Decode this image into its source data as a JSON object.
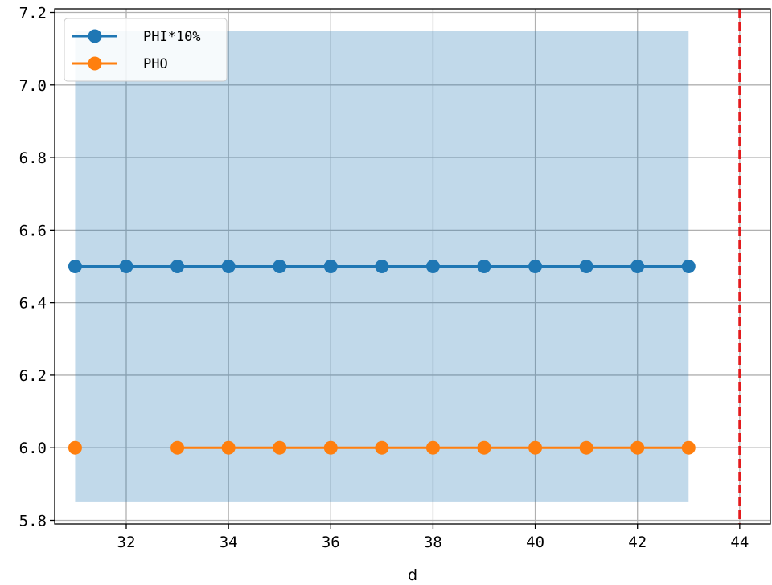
{
  "chart_data": {
    "type": "line",
    "title": "",
    "xlabel": "d",
    "ylabel": "",
    "xlim": [
      30.6,
      44.6
    ],
    "ylim": [
      5.79,
      7.21
    ],
    "xticks": [
      32,
      34,
      36,
      38,
      40,
      42,
      44
    ],
    "xtick_labels": [
      "32",
      "34",
      "36",
      "38",
      "40",
      "42",
      "44"
    ],
    "yticks": [
      5.8,
      6.0,
      6.2,
      6.4,
      6.6,
      6.8,
      7.0,
      7.2
    ],
    "ytick_labels": [
      "5.8",
      "6.0",
      "6.2",
      "6.4",
      "6.6",
      "6.8",
      "7.0",
      "7.2"
    ],
    "grid": true,
    "legend_position": "top-left",
    "series": [
      {
        "name": "PHI*10%",
        "color": "#1f77b4",
        "x": [
          31,
          32,
          33,
          34,
          35,
          36,
          37,
          38,
          39,
          40,
          41,
          42,
          43
        ],
        "values": [
          6.5,
          6.5,
          6.5,
          6.5,
          6.5,
          6.5,
          6.5,
          6.5,
          6.5,
          6.5,
          6.5,
          6.5,
          6.5
        ]
      },
      {
        "name": "PHO",
        "color": "#ff7f0e",
        "x": [
          31,
          33,
          34,
          35,
          36,
          37,
          38,
          39,
          40,
          41,
          42,
          43
        ],
        "values": [
          6.0,
          6.0,
          6.0,
          6.0,
          6.0,
          6.0,
          6.0,
          6.0,
          6.0,
          6.0,
          6.0,
          6.0
        ],
        "line_gap_after_index": 0
      }
    ],
    "shaded_region": {
      "x": [
        31,
        43
      ],
      "y": [
        5.85,
        7.15
      ],
      "color": "#1f77b4",
      "opacity": 0.28
    },
    "vertical_line": {
      "x": 44,
      "color": "#e31a1c",
      "style": "dashed"
    }
  }
}
